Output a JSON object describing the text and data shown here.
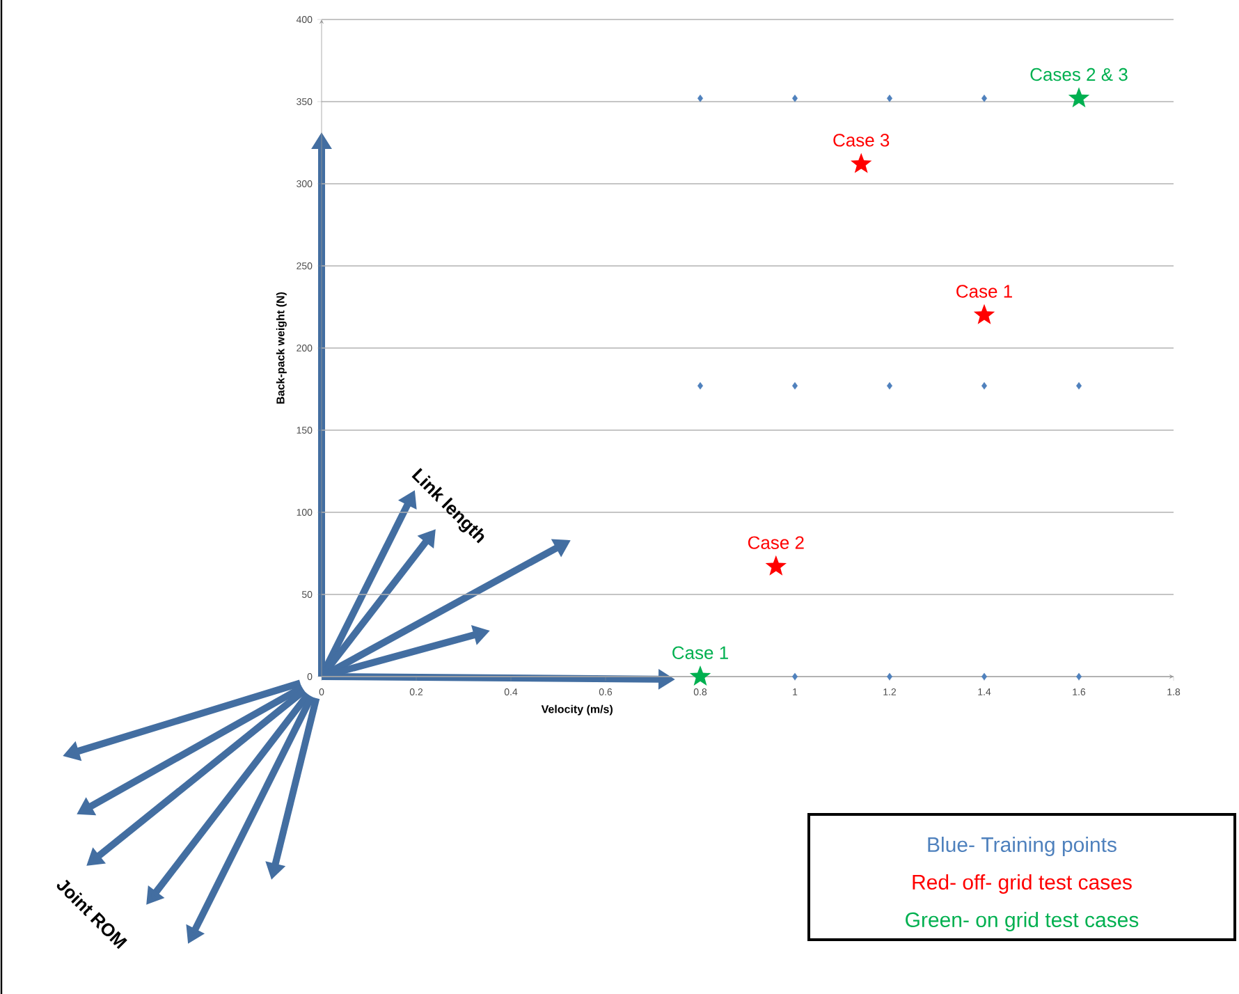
{
  "chart_data": {
    "type": "scatter",
    "xlabel": "Velocity (m/s)",
    "ylabel": "Back-pack weight (N)",
    "xlim": [
      0,
      1.8
    ],
    "xticks": [
      0,
      0.2,
      0.4,
      0.6,
      0.8,
      1,
      1.2,
      1.4,
      1.6,
      1.8
    ],
    "ylim": [
      0,
      400
    ],
    "yticks": [
      0,
      50,
      100,
      150,
      200,
      250,
      300,
      350,
      400
    ],
    "grid": "y",
    "series": [
      {
        "color": "#4f81bd",
        "marker": "diamond",
        "x": [
          0.8,
          1,
          1.2,
          1.4,
          0.8,
          1,
          1.2,
          1.4,
          1.6,
          1,
          1.2,
          1.4,
          1.6
        ],
        "values": [
          352,
          352,
          352,
          352,
          177,
          177,
          177,
          177,
          177,
          0,
          0,
          0,
          0
        ]
      },
      {
        "color": "#ff0000",
        "marker": "star",
        "x": [
          1.14,
          1.4,
          0.96
        ],
        "values": [
          312,
          220,
          67
        ]
      },
      {
        "color": "#00b050",
        "marker": "star",
        "x": [
          0.8,
          1.6
        ],
        "values": [
          0,
          352
        ]
      }
    ],
    "annotations": [
      {
        "text": "Cases 2 & 3",
        "x": 1.6,
        "y": 352
      },
      {
        "text": "Case 3",
        "x": 1.14,
        "y": 312
      },
      {
        "text": "Case 1",
        "x": 1.4,
        "y": 220
      },
      {
        "text": "Case 2",
        "x": 0.96,
        "y": 67
      },
      {
        "text": "Case 1",
        "x": 0.8,
        "y": 0
      },
      "Blue- Training points",
      "Red- off- grid test cases",
      "Green- on grid test cases",
      "Link length",
      "Joint ROM"
    ]
  }
}
